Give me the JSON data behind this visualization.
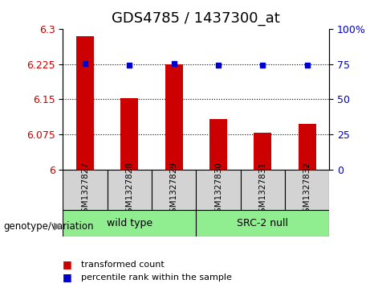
{
  "title": "GDS4785 / 1437300_at",
  "samples": [
    "GSM1327827",
    "GSM1327828",
    "GSM1327829",
    "GSM1327830",
    "GSM1327831",
    "GSM1327832"
  ],
  "bar_values": [
    6.285,
    6.152,
    6.225,
    6.108,
    6.078,
    6.098
  ],
  "dot_values": [
    75.5,
    74.5,
    75.5,
    74.5,
    74.5,
    74.5
  ],
  "groups": [
    {
      "label": "wild type",
      "indices": [
        0,
        1,
        2
      ],
      "color": "#90ee90"
    },
    {
      "label": "SRC-2 null",
      "indices": [
        3,
        4,
        5
      ],
      "color": "#90ee90"
    }
  ],
  "ylim_left": [
    6.0,
    6.3
  ],
  "ylim_right": [
    0,
    100
  ],
  "yticks_left": [
    6.0,
    6.075,
    6.15,
    6.225,
    6.3
  ],
  "ytick_labels_left": [
    "6",
    "6.075",
    "6.15",
    "6.225",
    "6.3"
  ],
  "yticks_right": [
    0,
    25,
    50,
    75,
    100
  ],
  "ytick_labels_right": [
    "0",
    "25",
    "50",
    "75",
    "100%"
  ],
  "hgrid_values": [
    6.075,
    6.15,
    6.225
  ],
  "bar_color": "#cc0000",
  "dot_color": "#0000cc",
  "bar_width": 0.4,
  "legend_items": [
    {
      "color": "#cc0000",
      "label": "transformed count"
    },
    {
      "color": "#0000cc",
      "label": "percentile rank within the sample"
    }
  ],
  "genotype_label": "genotype/variation",
  "tick_label_color_left": "#cc0000",
  "tick_label_color_right": "#0000cc",
  "title_fontsize": 13,
  "axis_fontsize": 9,
  "label_fontsize": 9,
  "cell_color": "#d3d3d3"
}
